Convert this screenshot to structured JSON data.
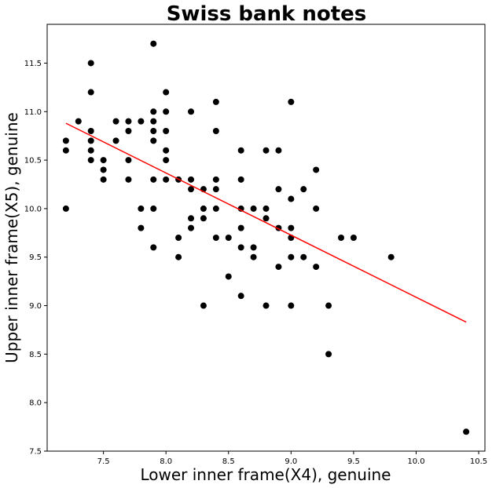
{
  "chart_data": {
    "type": "scatter",
    "title": "Swiss bank notes",
    "xlabel": "Lower inner frame(X4), genuine",
    "ylabel": "Upper inner frame(X5), genuine",
    "xlim": [
      7.05,
      10.55
    ],
    "ylim": [
      7.5,
      11.9
    ],
    "xticks": [
      "7.5",
      "8.0",
      "8.5",
      "9.0",
      "9.5",
      "10.0",
      "10.5"
    ],
    "yticks": [
      "7.5",
      "8.0",
      "8.5",
      "9.0",
      "9.5",
      "10.0",
      "10.5",
      "11.0",
      "11.5"
    ],
    "grid": false,
    "point_color": "#000000",
    "line_color": "#ff0000",
    "series": [
      {
        "points": [
          [
            7.2,
            10.7
          ],
          [
            7.2,
            10.6
          ],
          [
            7.2,
            10.0
          ],
          [
            7.3,
            10.9
          ],
          [
            7.4,
            11.5
          ],
          [
            7.4,
            11.2
          ],
          [
            7.4,
            10.8
          ],
          [
            7.4,
            10.7
          ],
          [
            7.4,
            10.6
          ],
          [
            7.4,
            10.5
          ],
          [
            7.5,
            10.5
          ],
          [
            7.5,
            10.4
          ],
          [
            7.5,
            10.3
          ],
          [
            7.6,
            10.9
          ],
          [
            7.6,
            10.7
          ],
          [
            7.7,
            10.9
          ],
          [
            7.7,
            10.8
          ],
          [
            7.7,
            10.5
          ],
          [
            7.7,
            10.3
          ],
          [
            7.8,
            10.9
          ],
          [
            7.8,
            10.0
          ],
          [
            7.8,
            9.8
          ],
          [
            7.9,
            11.7
          ],
          [
            7.9,
            11.0
          ],
          [
            7.9,
            10.9
          ],
          [
            7.9,
            10.8
          ],
          [
            7.9,
            10.7
          ],
          [
            7.9,
            10.3
          ],
          [
            7.9,
            10.0
          ],
          [
            7.9,
            9.6
          ],
          [
            8.0,
            11.2
          ],
          [
            8.0,
            11.0
          ],
          [
            8.0,
            10.8
          ],
          [
            8.0,
            10.6
          ],
          [
            8.0,
            10.5
          ],
          [
            8.0,
            10.3
          ],
          [
            8.1,
            10.3
          ],
          [
            8.1,
            9.7
          ],
          [
            8.1,
            9.5
          ],
          [
            8.2,
            11.0
          ],
          [
            8.2,
            10.3
          ],
          [
            8.2,
            10.2
          ],
          [
            8.2,
            9.9
          ],
          [
            8.2,
            9.8
          ],
          [
            8.3,
            10.2
          ],
          [
            8.3,
            10.0
          ],
          [
            8.3,
            9.9
          ],
          [
            8.3,
            9.0
          ],
          [
            8.4,
            11.1
          ],
          [
            8.4,
            10.8
          ],
          [
            8.4,
            10.3
          ],
          [
            8.4,
            10.2
          ],
          [
            8.4,
            10.0
          ],
          [
            8.4,
            9.7
          ],
          [
            8.5,
            9.7
          ],
          [
            8.5,
            9.3
          ],
          [
            8.6,
            10.6
          ],
          [
            8.6,
            10.3
          ],
          [
            8.6,
            10.0
          ],
          [
            8.6,
            9.8
          ],
          [
            8.6,
            9.6
          ],
          [
            8.6,
            9.1
          ],
          [
            8.7,
            10.0
          ],
          [
            8.7,
            9.6
          ],
          [
            8.7,
            9.5
          ],
          [
            8.8,
            10.6
          ],
          [
            8.8,
            10.0
          ],
          [
            8.8,
            9.9
          ],
          [
            8.8,
            9.0
          ],
          [
            8.9,
            10.6
          ],
          [
            8.9,
            10.2
          ],
          [
            8.9,
            9.8
          ],
          [
            8.9,
            9.4
          ],
          [
            9.0,
            11.1
          ],
          [
            9.0,
            10.1
          ],
          [
            9.0,
            9.8
          ],
          [
            9.0,
            9.7
          ],
          [
            9.0,
            9.5
          ],
          [
            9.0,
            9.0
          ],
          [
            9.1,
            10.2
          ],
          [
            9.1,
            9.5
          ],
          [
            9.2,
            10.4
          ],
          [
            9.2,
            10.0
          ],
          [
            9.2,
            9.4
          ],
          [
            9.3,
            9.0
          ],
          [
            9.3,
            8.5
          ],
          [
            9.4,
            9.7
          ],
          [
            9.5,
            9.7
          ],
          [
            9.8,
            9.5
          ],
          [
            10.4,
            7.7
          ]
        ]
      }
    ],
    "fit_line": {
      "x": [
        7.2,
        10.4
      ],
      "y": [
        10.88,
        8.83
      ]
    }
  }
}
